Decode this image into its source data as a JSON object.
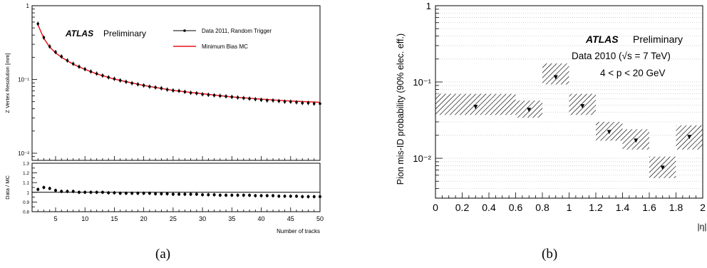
{
  "captions": {
    "a": "(a)",
    "b": "(b)"
  },
  "chart_data": [
    {
      "type": "scatter",
      "panel": "a",
      "upper": {
        "ylabel": "Z Vertex Resolution [mm]",
        "yscale": "log",
        "ylim": [
          0.008,
          1.0
        ],
        "ytick_labels": [
          {
            "v": 1,
            "t": "1"
          },
          {
            "v": 0.1,
            "t": "10⁻¹"
          },
          {
            "v": 0.01,
            "t": "10⁻²"
          }
        ],
        "atlas": "ATLAS",
        "preliminary": "Preliminary",
        "legend": {
          "data": "Data 2011, Random Trigger",
          "mc": "Minimum Bias MC"
        },
        "mc_color": "#e8141b",
        "series_data": [
          [
            2,
            0.57
          ],
          [
            3,
            0.37
          ],
          [
            4,
            0.28
          ],
          [
            5,
            0.235
          ],
          [
            6,
            0.205
          ],
          [
            7,
            0.181
          ],
          [
            8,
            0.163
          ],
          [
            9,
            0.149
          ],
          [
            10,
            0.138
          ],
          [
            11,
            0.128
          ],
          [
            12,
            0.12
          ],
          [
            13,
            0.113
          ],
          [
            14,
            0.107
          ],
          [
            15,
            0.102
          ],
          [
            16,
            0.097
          ],
          [
            17,
            0.093
          ],
          [
            18,
            0.089
          ],
          [
            19,
            0.086
          ],
          [
            20,
            0.083
          ],
          [
            21,
            0.08
          ],
          [
            22,
            0.078
          ],
          [
            23,
            0.076
          ],
          [
            24,
            0.073
          ],
          [
            25,
            0.071
          ],
          [
            26,
            0.07
          ],
          [
            27,
            0.068
          ],
          [
            28,
            0.066
          ],
          [
            29,
            0.065
          ],
          [
            30,
            0.063
          ],
          [
            31,
            0.062
          ],
          [
            32,
            0.061
          ],
          [
            33,
            0.06
          ],
          [
            34,
            0.059
          ],
          [
            35,
            0.058
          ],
          [
            36,
            0.057
          ],
          [
            37,
            0.056
          ],
          [
            38,
            0.055
          ],
          [
            39,
            0.054
          ],
          [
            40,
            0.053
          ],
          [
            41,
            0.052
          ],
          [
            42,
            0.052
          ],
          [
            43,
            0.051
          ],
          [
            44,
            0.05
          ],
          [
            45,
            0.05
          ],
          [
            46,
            0.049
          ],
          [
            47,
            0.048
          ],
          [
            48,
            0.048
          ],
          [
            49,
            0.047
          ],
          [
            50,
            0.047
          ]
        ],
        "series_mc": [
          [
            2,
            0.55
          ],
          [
            3,
            0.36
          ],
          [
            4,
            0.275
          ],
          [
            5,
            0.23
          ],
          [
            6,
            0.2
          ],
          [
            8,
            0.161
          ],
          [
            10,
            0.137
          ],
          [
            12,
            0.119
          ],
          [
            15,
            0.101
          ],
          [
            20,
            0.083
          ],
          [
            25,
            0.071
          ],
          [
            30,
            0.064
          ],
          [
            35,
            0.058
          ],
          [
            40,
            0.054
          ],
          [
            45,
            0.051
          ],
          [
            50,
            0.049
          ]
        ]
      },
      "lower": {
        "ylabel": "Data / MC",
        "ylim": [
          0.8,
          1.3
        ],
        "yticks": [
          "0.8",
          "0.9",
          "1",
          "1.1",
          "1.2",
          "1.3"
        ],
        "ratio": [
          [
            2,
            1.03
          ],
          [
            3,
            1.05
          ],
          [
            4,
            1.04
          ],
          [
            5,
            1.02
          ],
          [
            6,
            1.01
          ],
          [
            7,
            1.01
          ],
          [
            8,
            1.01
          ],
          [
            9,
            1.0
          ],
          [
            10,
            1.0
          ],
          [
            11,
            1.0
          ],
          [
            12,
            1.0
          ],
          [
            13,
            1.0
          ],
          [
            14,
            0.995
          ],
          [
            15,
            0.995
          ],
          [
            16,
            0.99
          ],
          [
            17,
            0.99
          ],
          [
            18,
            0.99
          ],
          [
            19,
            0.99
          ],
          [
            20,
            0.99
          ],
          [
            21,
            0.99
          ],
          [
            22,
            0.985
          ],
          [
            23,
            0.985
          ],
          [
            24,
            0.985
          ],
          [
            25,
            0.98
          ],
          [
            26,
            0.98
          ],
          [
            27,
            0.98
          ],
          [
            28,
            0.98
          ],
          [
            29,
            0.98
          ],
          [
            30,
            0.975
          ],
          [
            31,
            0.975
          ],
          [
            32,
            0.975
          ],
          [
            33,
            0.97
          ],
          [
            34,
            0.97
          ],
          [
            35,
            0.97
          ],
          [
            36,
            0.97
          ],
          [
            37,
            0.97
          ],
          [
            38,
            0.97
          ],
          [
            39,
            0.965
          ],
          [
            40,
            0.965
          ],
          [
            41,
            0.965
          ],
          [
            42,
            0.965
          ],
          [
            43,
            0.96
          ],
          [
            44,
            0.96
          ],
          [
            45,
            0.96
          ],
          [
            46,
            0.96
          ],
          [
            47,
            0.955
          ],
          [
            48,
            0.955
          ],
          [
            49,
            0.955
          ],
          [
            50,
            0.955
          ]
        ]
      },
      "xlabel": "Number of tracks",
      "xlim": [
        1,
        50
      ],
      "xticks": [
        "5",
        "10",
        "15",
        "20",
        "25",
        "30",
        "35",
        "40",
        "45",
        "50"
      ]
    },
    {
      "type": "scatter",
      "panel": "b",
      "ylabel": "Pion mis-ID probability (90% elec. eff.)",
      "xlabel": "|η|",
      "yscale": "log",
      "ylim": [
        0.003,
        1.0
      ],
      "ytick_labels": [
        {
          "v": 1,
          "t": "1"
        },
        {
          "v": 0.1,
          "t": "10⁻¹"
        },
        {
          "v": 0.01,
          "t": "10⁻²"
        }
      ],
      "xlim": [
        0,
        2
      ],
      "xticks": [
        "0",
        "0.2",
        "0.4",
        "0.6",
        "0.8",
        "1",
        "1.2",
        "1.4",
        "1.6",
        "1.8",
        "2"
      ],
      "atlas": "ATLAS",
      "preliminary": "Preliminary",
      "line2_a": "Data 2010 (",
      "line2_sqrt": "√",
      "line2_s": "s",
      "line2_b": " = 7 TeV)",
      "line3": "4 < p < 20 GeV",
      "points": [
        {
          "xlo": 0.0,
          "xhi": 0.6,
          "y": 0.047,
          "ylo": 0.037,
          "yhi": 0.07
        },
        {
          "xlo": 0.6,
          "xhi": 0.8,
          "y": 0.043,
          "ylo": 0.034,
          "yhi": 0.057
        },
        {
          "xlo": 0.8,
          "xhi": 1.0,
          "y": 0.115,
          "ylo": 0.093,
          "yhi": 0.175
        },
        {
          "xlo": 1.0,
          "xhi": 1.2,
          "y": 0.048,
          "ylo": 0.037,
          "yhi": 0.07
        },
        {
          "xlo": 1.2,
          "xhi": 1.4,
          "y": 0.022,
          "ylo": 0.017,
          "yhi": 0.03
        },
        {
          "xlo": 1.4,
          "xhi": 1.6,
          "y": 0.017,
          "ylo": 0.013,
          "yhi": 0.024
        },
        {
          "xlo": 1.6,
          "xhi": 1.8,
          "y": 0.0075,
          "ylo": 0.0055,
          "yhi": 0.0105
        },
        {
          "xlo": 1.8,
          "xhi": 2.0,
          "y": 0.019,
          "ylo": 0.013,
          "yhi": 0.027
        }
      ]
    }
  ]
}
